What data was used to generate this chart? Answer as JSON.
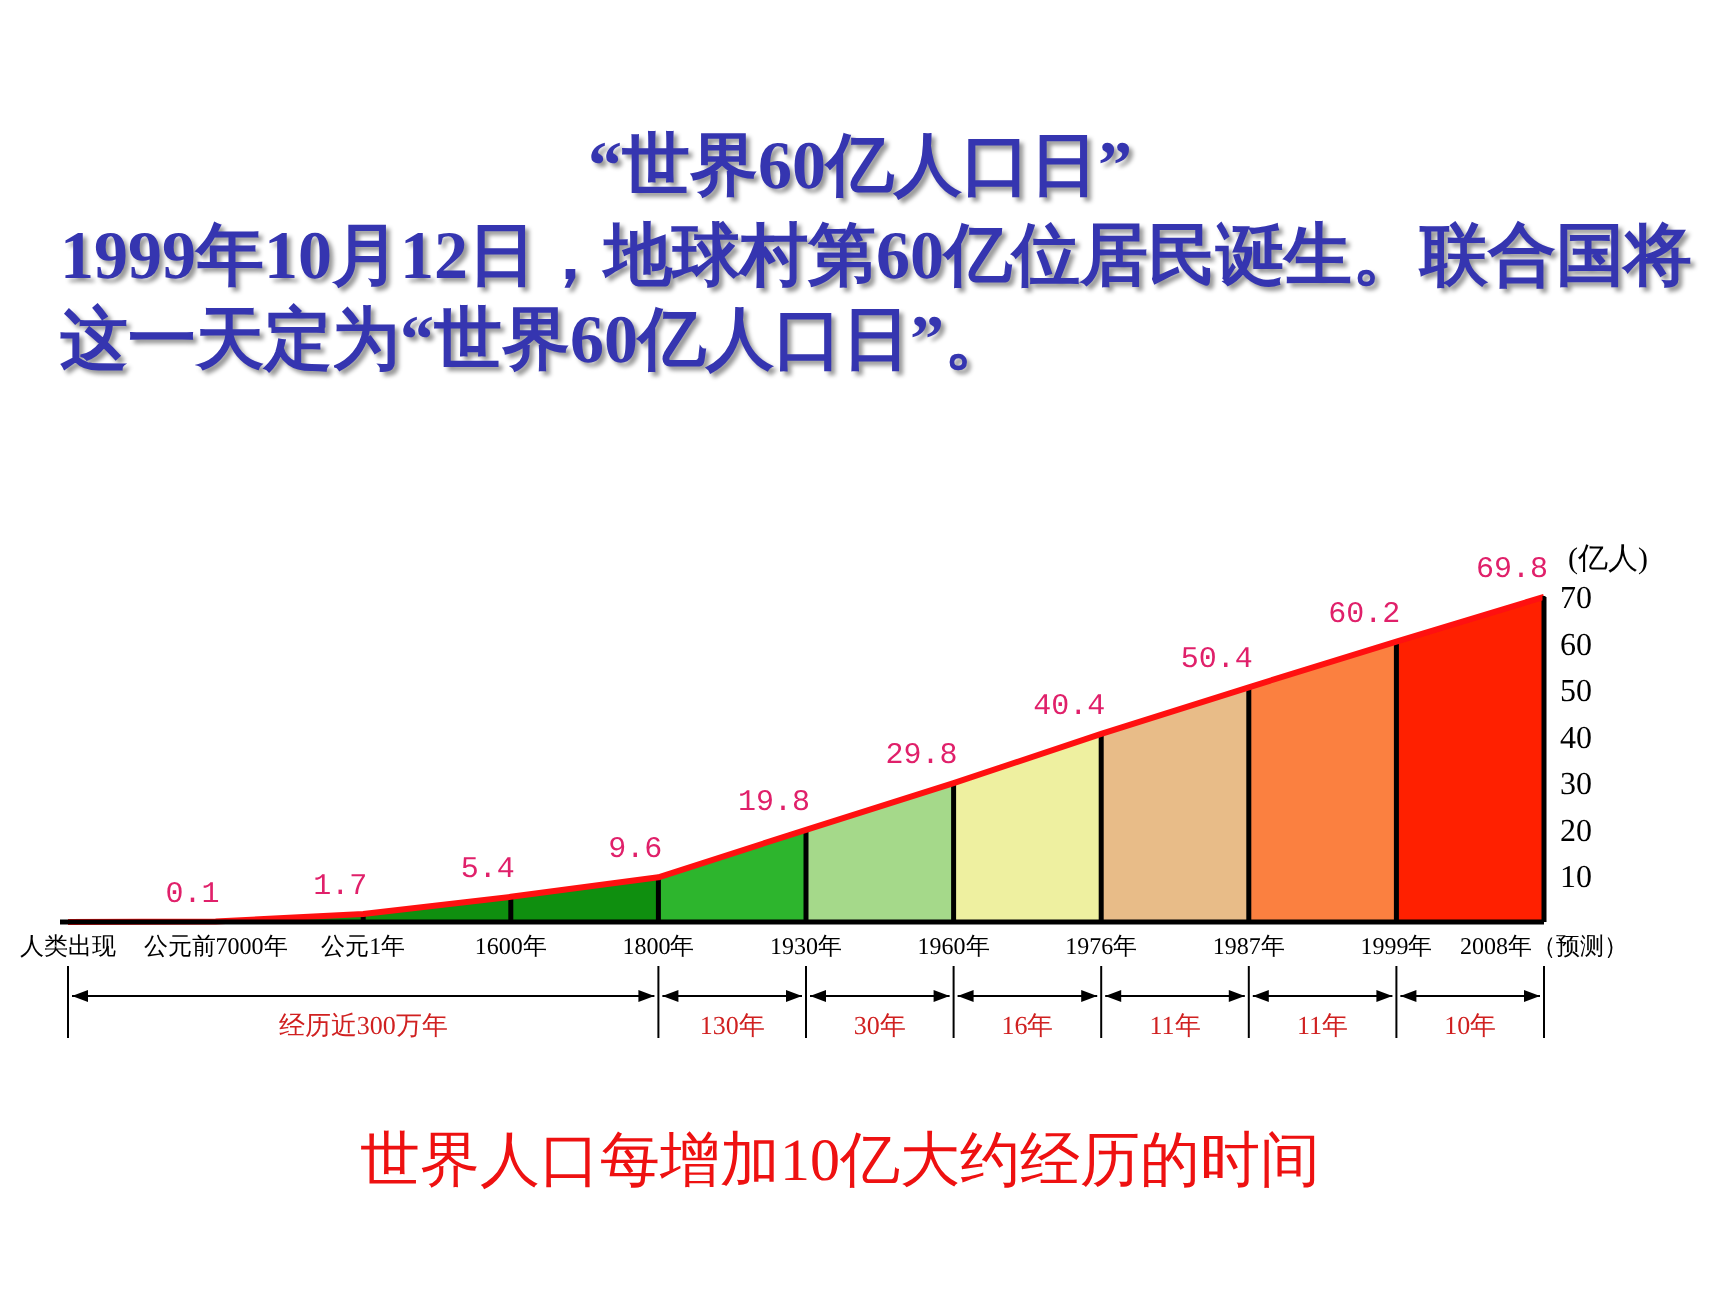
{
  "chart_data": {
    "type": "area",
    "title": "“世界60亿人口日”",
    "subtitle": "1999年10月12日，地球村第60亿位居民诞生。联合国将这一天定为“世界60亿人口日”。",
    "categories": [
      "人类出现",
      "公元前7000年",
      "公元1年",
      "1600年",
      "1800年",
      "1930年",
      "1960年",
      "1976年",
      "1987年",
      "1999年",
      "2008年（预测）"
    ],
    "series": [
      {
        "color": "#ff1010",
        "colors": [
          "#0f8f0f",
          "#0f8f0f",
          "#0f8f0f",
          "#0f8f0f",
          "#0f8f0f",
          "#2db52d",
          "#a5d98a",
          "#eef0a0",
          "#e8bc88",
          "#fb8040",
          "#ff2000"
        ],
        "values": [
          0,
          0.1,
          1.7,
          5.4,
          9.6,
          19.8,
          29.8,
          40.4,
          50.4,
          60.2,
          69.8
        ],
        "value_labels": [
          null,
          "0.1",
          "1.7",
          "5.4",
          "9.6",
          "19.8",
          "29.8",
          "40.4",
          "50.4",
          "60.2",
          "69.8"
        ]
      }
    ],
    "ylabel": "(亿人)",
    "ylim": [
      0,
      70
    ],
    "yticks": [
      10,
      20,
      30,
      40,
      50,
      60,
      70
    ],
    "grid": "x",
    "annotations": [
      "经历近300万年",
      "130年",
      "30年",
      "16年",
      "11年",
      "11年",
      "10年",
      "世界人口每增加10亿大约经历的时间"
    ]
  }
}
